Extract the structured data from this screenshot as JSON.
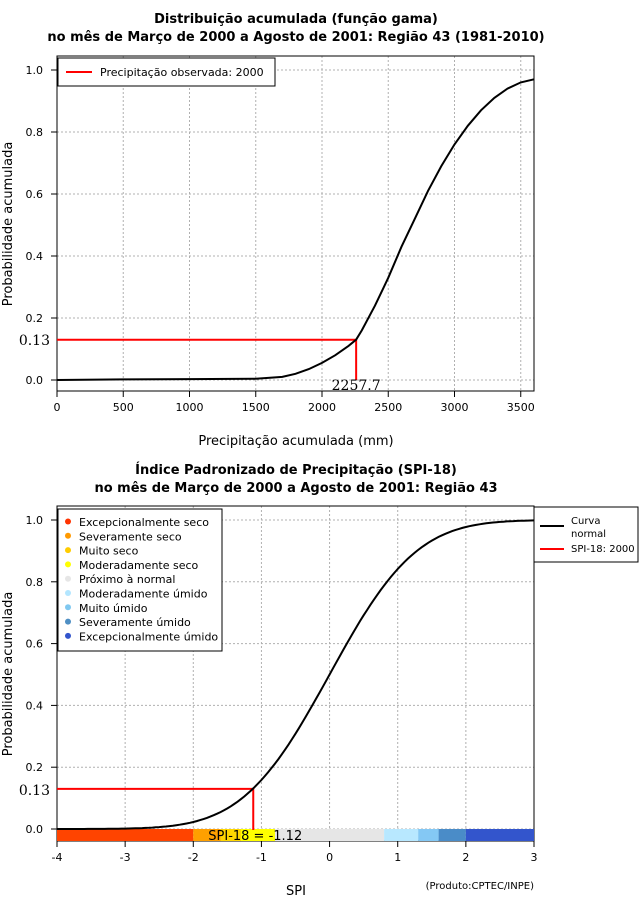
{
  "colors": {
    "curve": "#000000",
    "observed": "#ff0000",
    "grid": "#b0b0b0"
  },
  "chart_data": [
    {
      "type": "line",
      "title_line1": "Distribuição acumulada (função gama)",
      "title_line2": "no mês de Março de 2000 a Agosto de 2001: Região 43 (1981-2010)",
      "xlabel": "Precipitação acumulada (mm)",
      "ylabel": "Probabilidade acumulada",
      "xlim": [
        0,
        3600
      ],
      "ylim": [
        0,
        1.0
      ],
      "xticks": [
        0,
        500,
        1000,
        1500,
        2000,
        2500,
        3000,
        3500
      ],
      "xtick_labels": [
        "0",
        "500",
        "1000",
        "1500",
        "2000",
        "2500",
        "3000",
        "3500"
      ],
      "yticks": [
        0.0,
        0.2,
        0.4,
        0.6,
        0.8,
        1.0
      ],
      "ytick_labels": [
        "0.0",
        "0.2",
        "0.4",
        "0.6",
        "0.8",
        "1.0"
      ],
      "grid": true,
      "legend": {
        "position": "top-left",
        "entries": [
          "Precipitação observada: 2000"
        ]
      },
      "series": [
        {
          "name": "curva",
          "x": [
            0,
            500,
            1000,
            1500,
            1700,
            1800,
            1900,
            2000,
            2100,
            2200,
            2257.7,
            2300,
            2400,
            2500,
            2600,
            2700,
            2800,
            2900,
            3000,
            3100,
            3200,
            3300,
            3400,
            3500,
            3600
          ],
          "y": [
            0.0,
            0.002,
            0.003,
            0.004,
            0.01,
            0.02,
            0.035,
            0.055,
            0.08,
            0.11,
            0.13,
            0.16,
            0.24,
            0.33,
            0.43,
            0.52,
            0.61,
            0.69,
            0.76,
            0.82,
            0.87,
            0.91,
            0.94,
            0.96,
            0.97
          ]
        }
      ],
      "observed": {
        "x": 2257.7,
        "y": 0.13,
        "x_label": "2257.7",
        "y_label": "0.13"
      }
    },
    {
      "type": "line",
      "title_line1": "Índice Padronizado de Precipitação (SPI-18)",
      "title_line2": "no mês de Março de 2000 a Agosto de 2001: Região 43",
      "xlabel": "SPI",
      "ylabel": "Probabilidade acumulada",
      "xlim": [
        -4,
        3
      ],
      "ylim": [
        0,
        1.0
      ],
      "xticks": [
        -4,
        -3,
        -2,
        -1,
        0,
        1,
        2,
        3
      ],
      "xtick_labels": [
        "-4",
        "-3",
        "-2",
        "-1",
        "0",
        "1",
        "2",
        "3"
      ],
      "yticks": [
        0.0,
        0.2,
        0.4,
        0.6,
        0.8,
        1.0
      ],
      "ytick_labels": [
        "0.0",
        "0.2",
        "0.4",
        "0.6",
        "0.8",
        "1.0"
      ],
      "grid": true,
      "legend": {
        "position": "top-left",
        "entries": [
          {
            "label": "Excepcionalmente seco",
            "color": "#ff3300"
          },
          {
            "label": "Severamente seco",
            "color": "#ff9900"
          },
          {
            "label": "Muito seco",
            "color": "#ffcc00"
          },
          {
            "label": "Moderadamente seco",
            "color": "#ffff00"
          },
          {
            "label": "Próximo à normal",
            "color": "#e6e6e6"
          },
          {
            "label": "Moderadamente úmido",
            "color": "#b3e6ff"
          },
          {
            "label": "Muito úmido",
            "color": "#80c8f0"
          },
          {
            "label": "Severamente úmido",
            "color": "#4f8fc4"
          },
          {
            "label": "Excepcionalmente úmido",
            "color": "#3355cc"
          }
        ]
      },
      "legend2": {
        "position": "top-right",
        "entries": [
          {
            "label_line1": "Curva",
            "label_line2": "normal",
            "color": "#000000"
          },
          {
            "label_line1": "SPI-18: 2000",
            "label_line2": "",
            "color": "#ff0000"
          }
        ]
      },
      "category_bands": [
        {
          "from": -4.0,
          "to": -2.0,
          "color": "#ff4400"
        },
        {
          "from": -2.0,
          "to": -1.6,
          "color": "#ffa000"
        },
        {
          "from": -1.6,
          "to": -1.3,
          "color": "#ffd700"
        },
        {
          "from": -1.3,
          "to": -0.8,
          "color": "#ffff00"
        },
        {
          "from": -0.8,
          "to": 0.8,
          "color": "#e6e6e6"
        },
        {
          "from": 0.8,
          "to": 1.3,
          "color": "#b8e8ff"
        },
        {
          "from": 1.3,
          "to": 1.6,
          "color": "#84c8f4"
        },
        {
          "from": 1.6,
          "to": 2.0,
          "color": "#4a8cc8"
        },
        {
          "from": 2.0,
          "to": 3.0,
          "color": "#3355cc"
        }
      ],
      "observed": {
        "x": -1.12,
        "y": 0.13,
        "y_label": "0.13",
        "spi_label": "SPI-18 = -1.12"
      },
      "credit": "(Produto:CPTEC/INPE)"
    }
  ]
}
